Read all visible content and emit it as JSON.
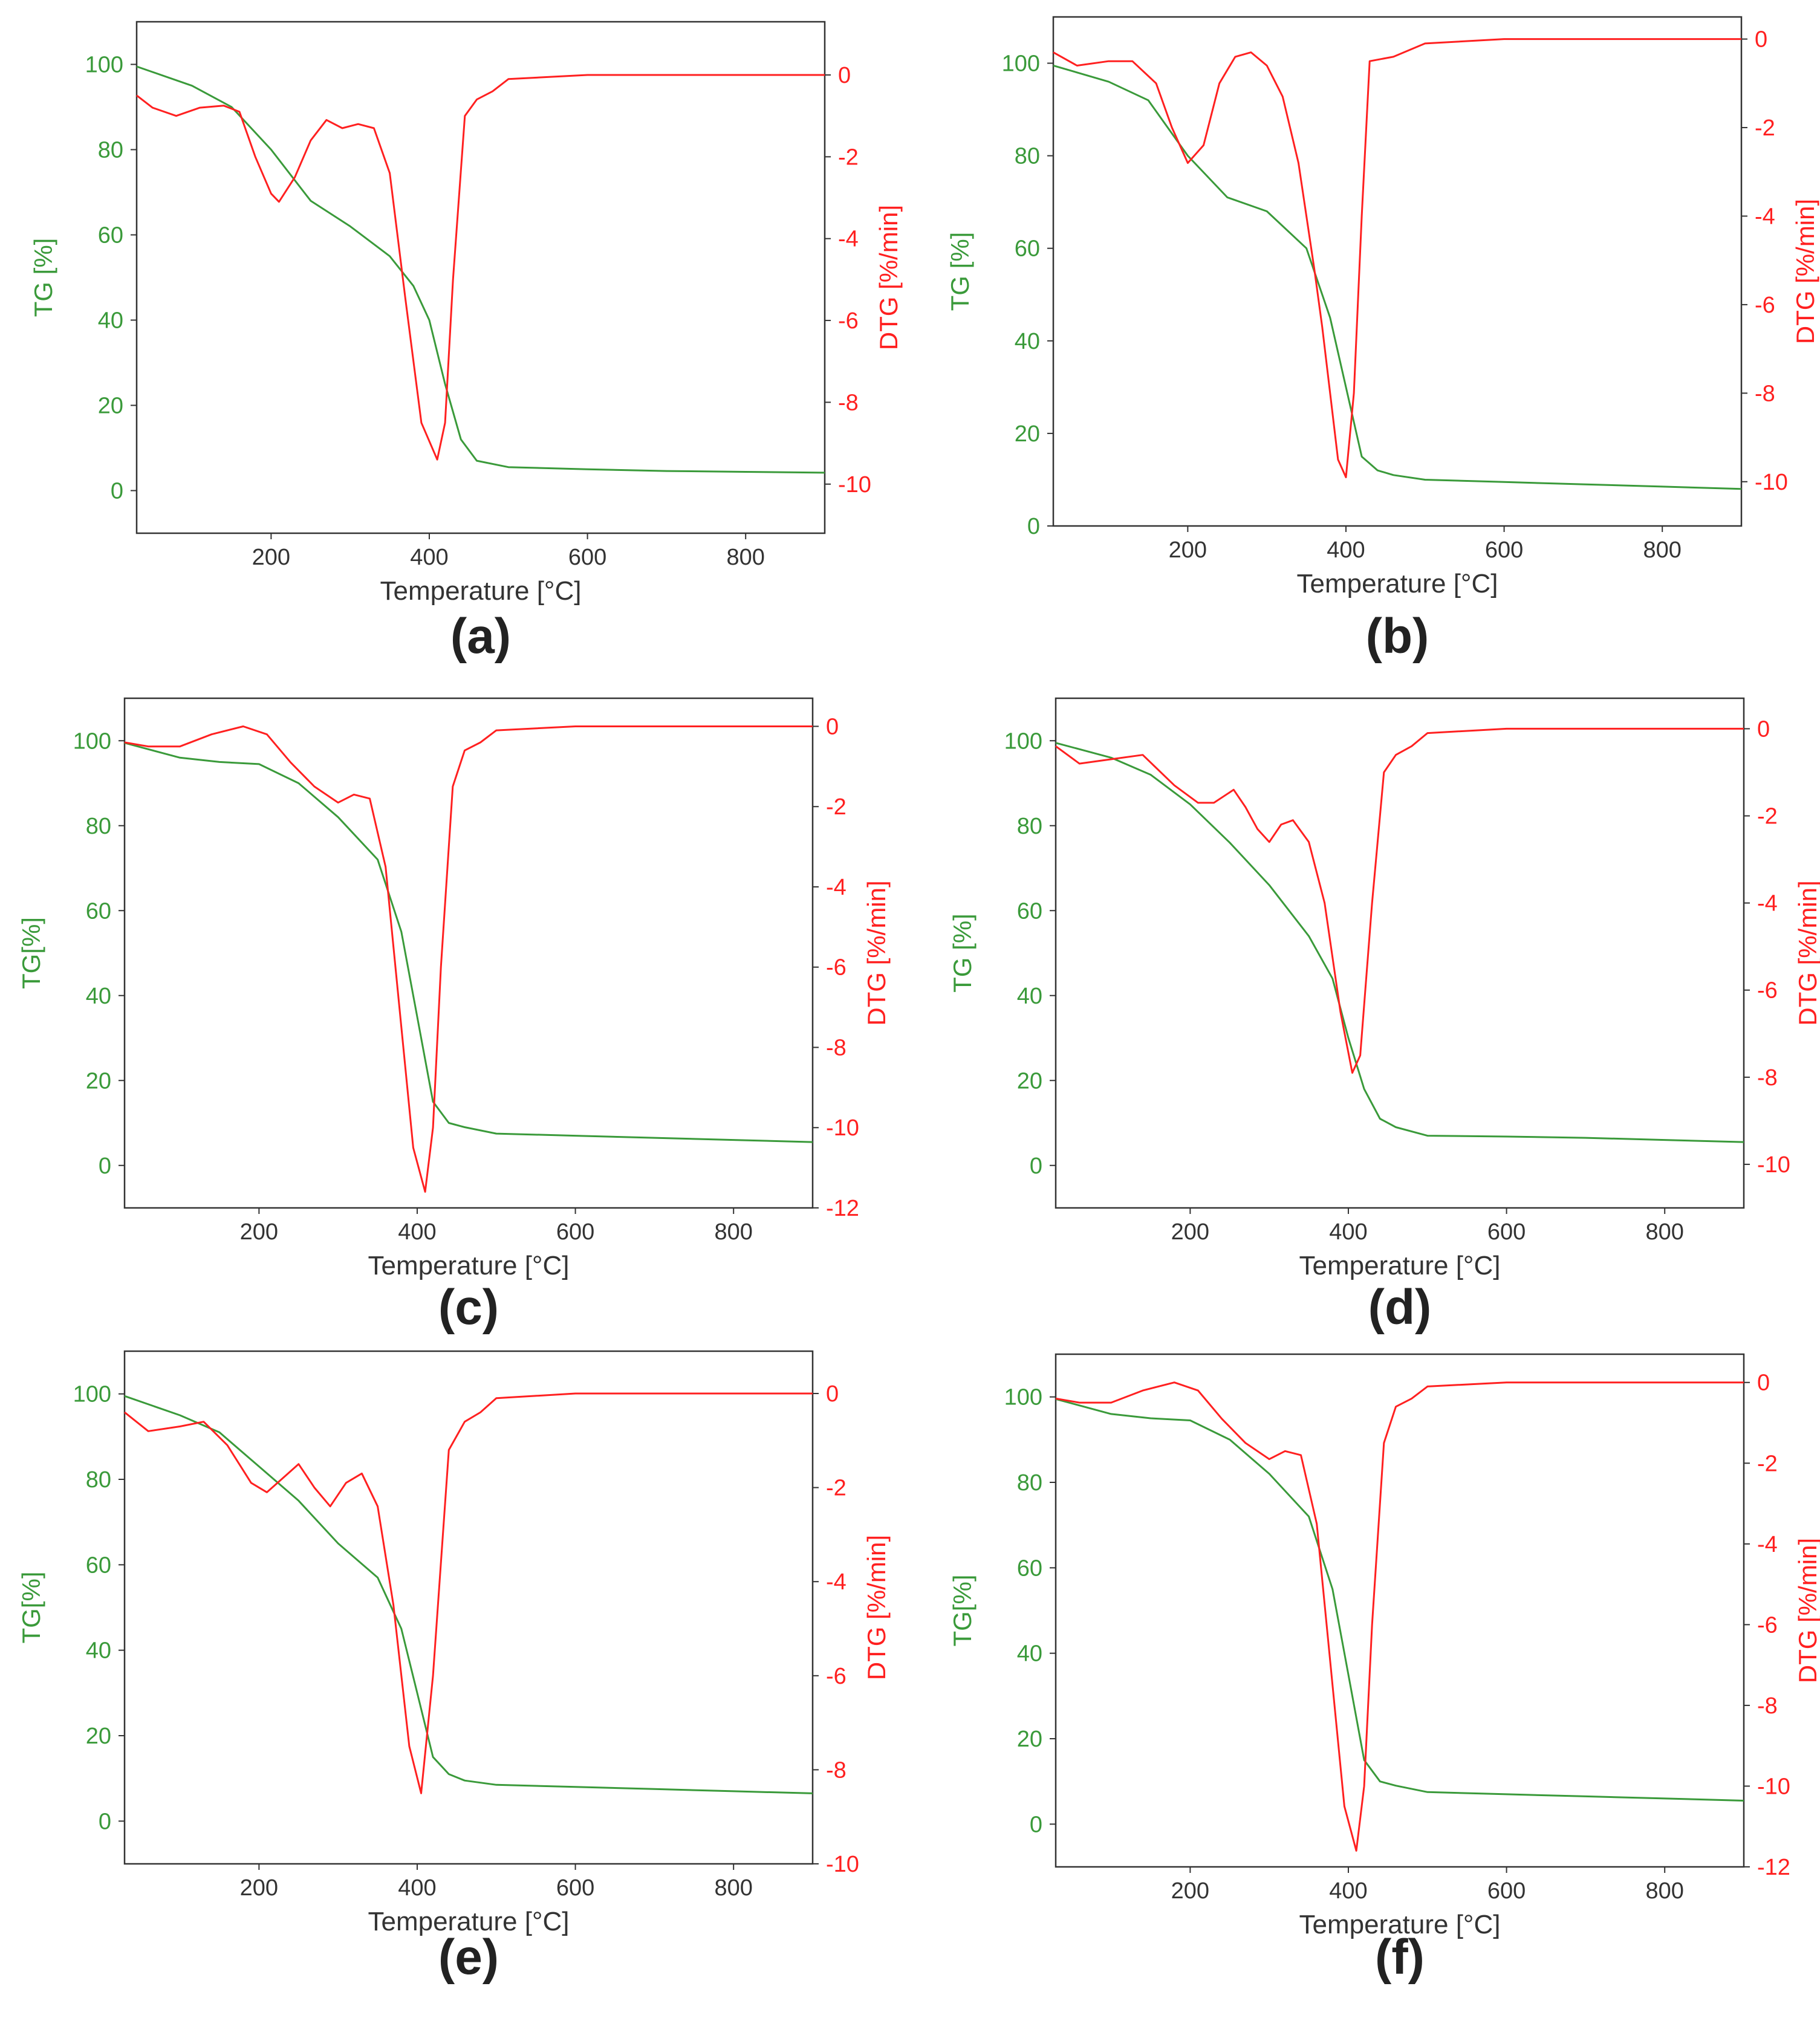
{
  "colors": {
    "tg": "#3a9a3a",
    "dtg": "#ff2020",
    "axis": "#333333",
    "text": "#333333"
  },
  "chart_data": [
    {
      "type": "line",
      "panel": "(a)",
      "xlabel": "Temperature [°C]",
      "ylabel": "TG [%]",
      "y2label": "DTG [%/min]",
      "xlim": [
        30,
        900
      ],
      "ylim": [
        -10,
        110
      ],
      "y2lim": [
        -11.2,
        1.3
      ],
      "xticks": [
        200,
        400,
        600,
        800
      ],
      "yticks": [
        0,
        20,
        40,
        60,
        80,
        100
      ],
      "y2ticks": [
        0,
        -2,
        -4,
        -6,
        -8,
        -10
      ],
      "series": [
        {
          "name": "TG",
          "axis": "left",
          "x": [
            30,
            100,
            150,
            200,
            250,
            300,
            350,
            380,
            400,
            420,
            440,
            460,
            500,
            600,
            700,
            800,
            900
          ],
          "y": [
            99.5,
            95,
            90,
            80,
            68,
            62,
            55,
            48,
            40,
            25,
            12,
            7,
            5.5,
            5,
            4.6,
            4.4,
            4.2
          ]
        },
        {
          "name": "DTG",
          "axis": "right",
          "x": [
            30,
            50,
            80,
            110,
            140,
            160,
            180,
            200,
            210,
            230,
            250,
            270,
            290,
            310,
            330,
            350,
            370,
            390,
            410,
            420,
            430,
            445,
            460,
            480,
            500,
            600,
            700,
            800,
            900
          ],
          "y": [
            -0.5,
            -0.8,
            -1.0,
            -0.8,
            -0.75,
            -0.9,
            -2.0,
            -2.9,
            -3.1,
            -2.5,
            -1.6,
            -1.1,
            -1.3,
            -1.2,
            -1.3,
            -2.4,
            -5.5,
            -8.5,
            -9.4,
            -8.5,
            -5.0,
            -1.0,
            -0.6,
            -0.4,
            -0.1,
            0,
            0,
            0,
            0
          ]
        }
      ]
    },
    {
      "type": "line",
      "panel": "(b)",
      "xlabel": "Temperature [°C]",
      "ylabel": "TG [%]",
      "y2label": "DTG [%/min]",
      "xlim": [
        30,
        900
      ],
      "ylim": [
        0,
        110
      ],
      "y2lim": [
        -11,
        0.5
      ],
      "xticks": [
        200,
        400,
        600,
        800
      ],
      "yticks": [
        0,
        20,
        40,
        60,
        80,
        100
      ],
      "y2ticks": [
        0,
        -2,
        -4,
        -6,
        -8,
        -10
      ],
      "series": [
        {
          "name": "TG",
          "axis": "left",
          "x": [
            30,
            100,
            150,
            200,
            250,
            300,
            350,
            380,
            400,
            420,
            440,
            460,
            500,
            600,
            700,
            800,
            900
          ],
          "y": [
            99.5,
            96,
            92,
            80,
            71,
            68,
            60,
            45,
            30,
            15,
            12,
            11,
            10,
            9.5,
            9,
            8.5,
            8
          ]
        },
        {
          "name": "DTG",
          "axis": "right",
          "x": [
            30,
            60,
            100,
            130,
            160,
            180,
            200,
            220,
            240,
            260,
            280,
            300,
            320,
            340,
            360,
            370,
            380,
            390,
            400,
            410,
            420,
            430,
            460,
            500,
            600,
            700,
            800,
            900
          ],
          "y": [
            -0.3,
            -0.6,
            -0.5,
            -0.5,
            -1.0,
            -2.0,
            -2.8,
            -2.4,
            -1.0,
            -0.4,
            -0.3,
            -0.6,
            -1.3,
            -2.8,
            -5.2,
            -6.5,
            -8.0,
            -9.5,
            -9.9,
            -8.0,
            -4.0,
            -0.5,
            -0.4,
            -0.1,
            0,
            0,
            0,
            0
          ]
        }
      ]
    },
    {
      "type": "line",
      "panel": "(c)",
      "xlabel": "Temperature [°C]",
      "ylabel": "TG[%]",
      "y2label": "DTG [%/min]",
      "xlim": [
        30,
        900
      ],
      "ylim": [
        -10,
        110
      ],
      "y2lim": [
        -12,
        0.7
      ],
      "xticks": [
        200,
        400,
        600,
        800
      ],
      "yticks": [
        0,
        20,
        40,
        60,
        80,
        100
      ],
      "y2ticks": [
        0,
        -2,
        -4,
        -6,
        -8,
        -10,
        -12
      ],
      "series": [
        {
          "name": "TG",
          "axis": "left",
          "x": [
            30,
            100,
            150,
            200,
            250,
            300,
            350,
            380,
            400,
            420,
            440,
            460,
            500,
            600,
            700,
            800,
            900
          ],
          "y": [
            99.5,
            96,
            95,
            94.5,
            90,
            82,
            72,
            55,
            35,
            15,
            10,
            9,
            7.5,
            7,
            6.5,
            6,
            5.5
          ]
        },
        {
          "name": "DTG",
          "axis": "right",
          "x": [
            30,
            60,
            100,
            140,
            180,
            210,
            240,
            270,
            300,
            320,
            340,
            360,
            380,
            395,
            410,
            420,
            430,
            445,
            460,
            480,
            500,
            600,
            700,
            800,
            900
          ],
          "y": [
            -0.4,
            -0.5,
            -0.5,
            -0.2,
            0,
            -0.2,
            -0.9,
            -1.5,
            -1.9,
            -1.7,
            -1.8,
            -3.5,
            -7.5,
            -10.5,
            -11.6,
            -10.0,
            -6.0,
            -1.5,
            -0.6,
            -0.4,
            -0.1,
            0,
            0,
            0,
            0
          ]
        }
      ]
    },
    {
      "type": "line",
      "panel": "(d)",
      "xlabel": "Temperature [°C]",
      "ylabel": "TG [%]",
      "y2label": "DTG [%/min]",
      "xlim": [
        30,
        900
      ],
      "ylim": [
        -10,
        110
      ],
      "y2lim": [
        -11,
        0.7
      ],
      "xticks": [
        200,
        400,
        600,
        800
      ],
      "yticks": [
        0,
        20,
        40,
        60,
        80,
        100
      ],
      "y2ticks": [
        0,
        -2,
        -4,
        -6,
        -8,
        -10
      ],
      "series": [
        {
          "name": "TG",
          "axis": "left",
          "x": [
            30,
            100,
            150,
            200,
            250,
            300,
            350,
            380,
            400,
            420,
            440,
            460,
            500,
            600,
            700,
            800,
            900
          ],
          "y": [
            99.5,
            96,
            92,
            85,
            76,
            66,
            54,
            44,
            30,
            18,
            11,
            9,
            7,
            6.8,
            6.5,
            6,
            5.5
          ]
        },
        {
          "name": "DTG",
          "axis": "right",
          "x": [
            30,
            60,
            100,
            140,
            180,
            210,
            230,
            255,
            270,
            285,
            300,
            315,
            330,
            350,
            370,
            390,
            405,
            415,
            430,
            445,
            460,
            480,
            500,
            600,
            700,
            800,
            900
          ],
          "y": [
            -0.4,
            -0.8,
            -0.7,
            -0.6,
            -1.3,
            -1.7,
            -1.7,
            -1.4,
            -1.8,
            -2.3,
            -2.6,
            -2.2,
            -2.1,
            -2.6,
            -4.0,
            -6.5,
            -7.9,
            -7.5,
            -4.0,
            -1.0,
            -0.6,
            -0.4,
            -0.1,
            0,
            0,
            0,
            0
          ]
        }
      ]
    },
    {
      "type": "line",
      "panel": "(e)",
      "xlabel": "Temperature [°C]",
      "ylabel": "TG[%]",
      "y2label": "DTG [%/min]",
      "xlim": [
        30,
        900
      ],
      "ylim": [
        -10,
        110
      ],
      "y2lim": [
        -10,
        0.9
      ],
      "xticks": [
        200,
        400,
        600,
        800
      ],
      "yticks": [
        0,
        20,
        40,
        60,
        80,
        100
      ],
      "y2ticks": [
        0,
        -2,
        -4,
        -6,
        -8,
        -10
      ],
      "series": [
        {
          "name": "TG",
          "axis": "left",
          "x": [
            30,
            100,
            150,
            200,
            250,
            300,
            350,
            380,
            400,
            420,
            440,
            460,
            500,
            600,
            700,
            800,
            900
          ],
          "y": [
            99.5,
            95,
            91,
            83,
            75,
            65,
            57,
            45,
            30,
            15,
            11,
            9.5,
            8.5,
            8,
            7.5,
            7,
            6.5
          ]
        },
        {
          "name": "DTG",
          "axis": "right",
          "x": [
            30,
            60,
            100,
            130,
            160,
            190,
            210,
            230,
            250,
            270,
            290,
            310,
            330,
            350,
            370,
            390,
            405,
            420,
            440,
            460,
            480,
            500,
            600,
            700,
            800,
            900
          ],
          "y": [
            -0.4,
            -0.8,
            -0.7,
            -0.6,
            -1.1,
            -1.9,
            -2.1,
            -1.8,
            -1.5,
            -2.0,
            -2.4,
            -1.9,
            -1.7,
            -2.4,
            -4.5,
            -7.5,
            -8.5,
            -6.0,
            -1.2,
            -0.6,
            -0.4,
            -0.1,
            0,
            0,
            0,
            0
          ]
        }
      ]
    },
    {
      "type": "line",
      "panel": "(f)",
      "xlabel": "Temperature [°C]",
      "ylabel": "TG[%]",
      "y2label": "DTG [%/min]",
      "xlim": [
        30,
        900
      ],
      "ylim": [
        -10,
        110
      ],
      "y2lim": [
        -12,
        0.7
      ],
      "xticks": [
        200,
        400,
        600,
        800
      ],
      "yticks": [
        0,
        20,
        40,
        60,
        80,
        100
      ],
      "y2ticks": [
        0,
        -2,
        -4,
        -6,
        -8,
        -10,
        -12
      ],
      "series": [
        {
          "name": "TG",
          "axis": "left",
          "x": [
            30,
            100,
            150,
            200,
            250,
            300,
            350,
            380,
            400,
            420,
            440,
            460,
            500,
            600,
            700,
            800,
            900
          ],
          "y": [
            99.5,
            96,
            95,
            94.5,
            90,
            82,
            72,
            55,
            35,
            15,
            10,
            9,
            7.5,
            7,
            6.5,
            6,
            5.5
          ]
        },
        {
          "name": "DTG",
          "axis": "right",
          "x": [
            30,
            60,
            100,
            140,
            180,
            210,
            240,
            270,
            300,
            320,
            340,
            360,
            380,
            395,
            410,
            420,
            430,
            445,
            460,
            480,
            500,
            600,
            700,
            800,
            900
          ],
          "y": [
            -0.4,
            -0.5,
            -0.5,
            -0.2,
            0,
            -0.2,
            -0.9,
            -1.5,
            -1.9,
            -1.7,
            -1.8,
            -3.5,
            -7.5,
            -10.5,
            -11.6,
            -10.0,
            -6.0,
            -1.5,
            -0.6,
            -0.4,
            -0.1,
            0,
            0,
            0,
            0
          ]
        }
      ]
    }
  ]
}
